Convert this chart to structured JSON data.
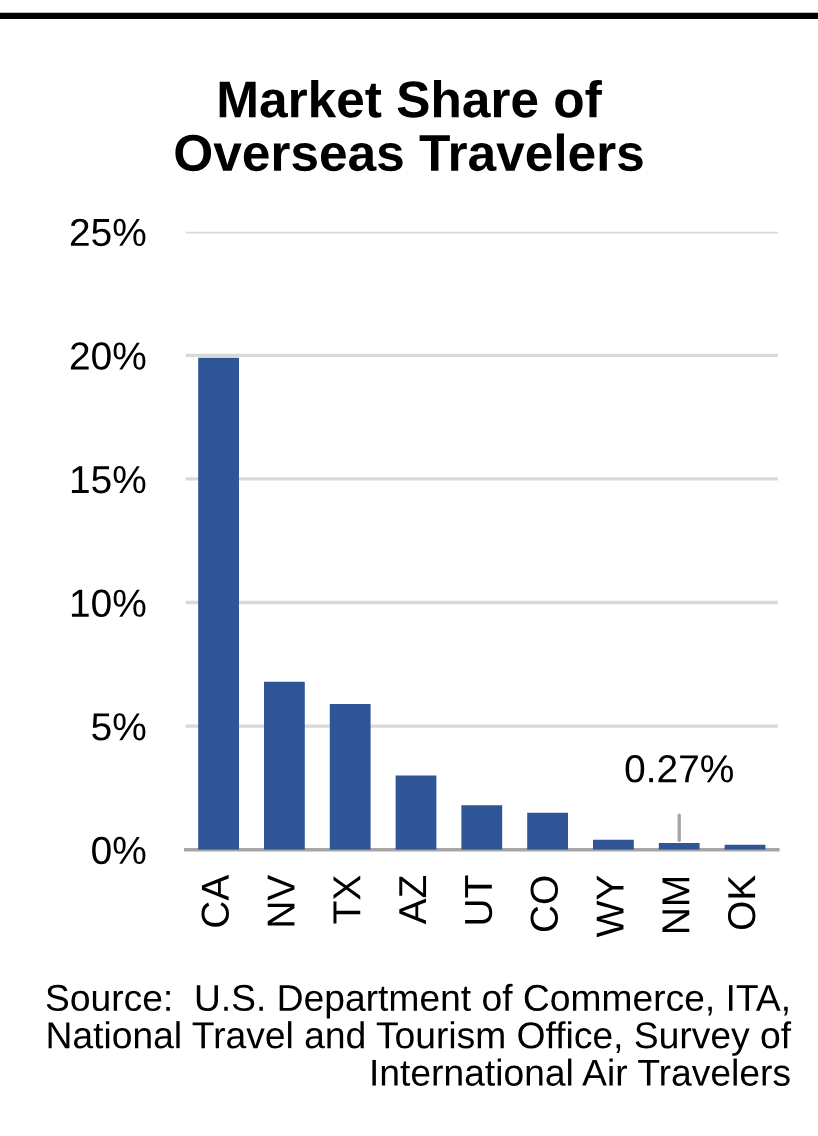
{
  "chart_data": {
    "type": "bar",
    "title": "Market Share of\nOverseas Travelers",
    "categories": [
      "CA",
      "NV",
      "TX",
      "AZ",
      "UT",
      "CO",
      "WY",
      "NM",
      "OK"
    ],
    "values": [
      19.9,
      6.8,
      5.9,
      3.0,
      1.8,
      1.5,
      0.4,
      0.27,
      0.2
    ],
    "value_labels": [
      null,
      null,
      null,
      null,
      null,
      null,
      null,
      "0.27%",
      null
    ],
    "color": "#2f5597",
    "ylim": [
      0,
      25
    ],
    "yticks": [
      {
        "value": 0,
        "label": "0%"
      },
      {
        "value": 5,
        "label": "5%"
      },
      {
        "value": 10,
        "label": "10%"
      },
      {
        "value": 15,
        "label": "15%"
      },
      {
        "value": 20,
        "label": "20%"
      },
      {
        "value": 25,
        "label": "25%"
      }
    ],
    "grid": "y",
    "annotations": [
      "Source:  U.S. Department of Commerce, ITA,\nNational Travel and Tourism Office, Survey of\nInternational Air Travelers"
    ]
  }
}
